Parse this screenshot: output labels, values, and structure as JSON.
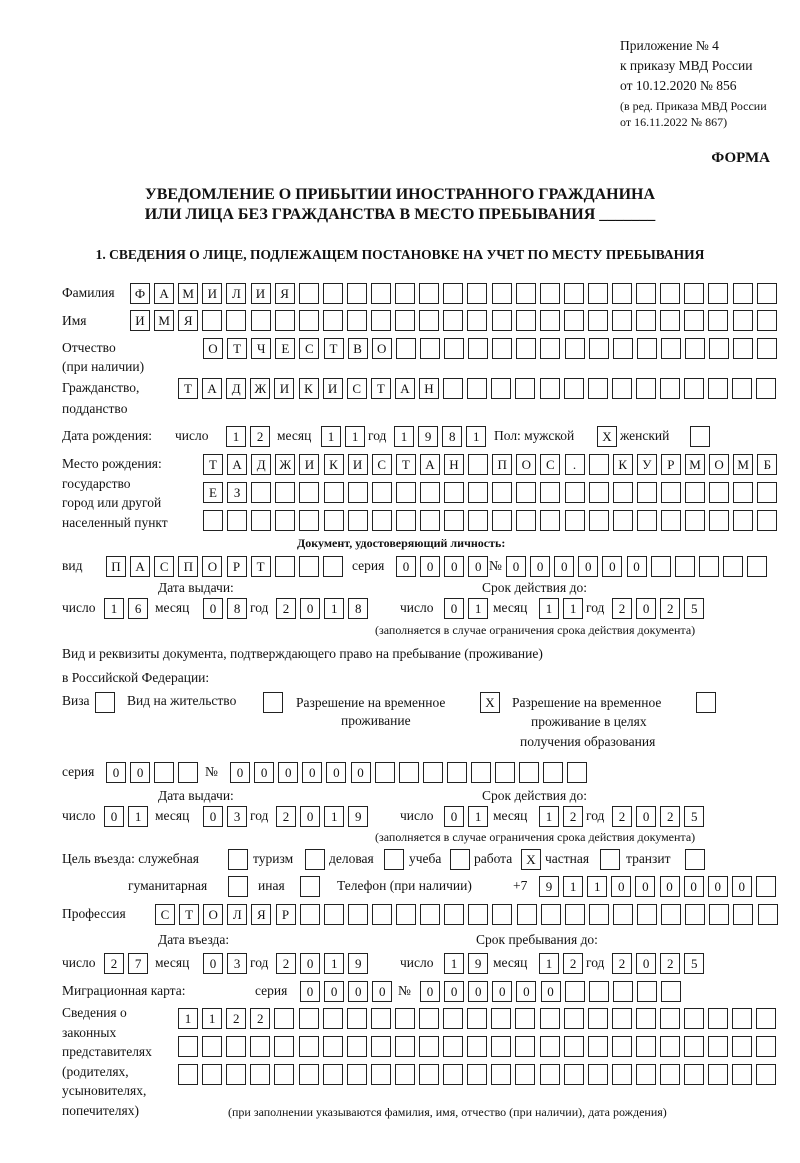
{
  "header": {
    "appendix": "Приложение № 4",
    "order": "к приказу МВД России",
    "order_date": "от 10.12.2020 № 856",
    "edition_1": "(в ред. Приказа МВД России",
    "edition_2": "от 16.11.2022 № 867)",
    "form": "ФОРМА",
    "title_1": "УВЕДОМЛЕНИЕ О ПРИБЫТИИ ИНОСТРАННОГО ГРАЖДАНИНА",
    "title_2": "ИЛИ ЛИЦА БЕЗ ГРАЖДАНСТВА В МЕСТО ПРЕБЫВАНИЯ _______",
    "section_1": "1. СВЕДЕНИЯ О ЛИЦЕ, ПОДЛЕЖАЩЕМ ПОСТАНОВКЕ НА УЧЕТ ПО МЕСТУ ПРЕБЫВАНИЯ"
  },
  "labels": {
    "surname": "Фамилия",
    "name": "Имя",
    "patronymic_1": "Отчество",
    "patronymic_2": "(при наличии)",
    "citizenship_1": "Гражданство,",
    "citizenship_2": "подданство",
    "birth_date": "Дата рождения:",
    "day": "число",
    "month": "месяц",
    "year": "год",
    "sex": "Пол: мужской",
    "female": "женский",
    "birthplace_1": "Место рождения:",
    "birthplace_2": "государство",
    "birthplace_3": "город или другой",
    "birthplace_4": "населенный пункт",
    "id_doc": "Документ, удостоверяющий личность:",
    "kind": "вид",
    "series": "серия",
    "number": "№",
    "issue_date": "Дата выдачи:",
    "valid_until": "Срок действия до:",
    "validity_note": "(заполняется в случае ограничения срока действия документа)",
    "stay_doc_1": "Вид и реквизиты документа, подтверждающего право на пребывание (проживание)",
    "stay_doc_2": "в Российской Федерации:",
    "visa": "Виза",
    "residence": "Вид на жительство",
    "temp_1": "Разрешение на временное",
    "temp_2": "проживание",
    "edu_1": "Разрешение на временное",
    "edu_2": "проживание в целях",
    "edu_3": "получения образования",
    "purpose": "Цель въезда: служебная",
    "tourism": "туризм",
    "business": "деловая",
    "study": "учеба",
    "work": "работа",
    "private": "частная",
    "transit": "транзит",
    "humanitarian": "гуманитарная",
    "other": "иная",
    "phone": "Телефон (при наличии)",
    "phone_prefix": "+7",
    "profession": "Профессия",
    "entry_date": "Дата въезда:",
    "stay_until": "Срок пребывания до:",
    "migration_card": "Миграционная карта:",
    "reps_1": "Сведения о",
    "reps_2": "законных",
    "reps_3": "представителях",
    "reps_4": "(родителях,",
    "reps_5": "усыновителях,",
    "reps_6": "попечителях)",
    "reps_note": "(при заполнении указываются фамилия, имя, отчество (при наличии), дата рождения)"
  },
  "person": {
    "surname": "ФАМИЛИЯ",
    "name": "ИМЯ",
    "patronymic": "ОТЧЕСТВО",
    "citizenship": "ТАДЖИКИСТАН",
    "birth_date": {
      "day": "12",
      "month": "11",
      "year": "1981"
    },
    "sex_male": "X",
    "sex_female": "",
    "birthplace_1": "ТАДЖИКИСТАН ПОС. КУРМОМБ",
    "birthplace_2": "ЕЗ",
    "birthplace_3": ""
  },
  "id_document": {
    "kind": "ПАСПОРТ",
    "series": "0000",
    "number": "000000",
    "issue_date": {
      "day": "16",
      "month": "08",
      "year": "2018"
    },
    "valid_until": {
      "day": "01",
      "month": "11",
      "year": "2025"
    }
  },
  "stay_document": {
    "visa": "",
    "residence": "",
    "temp_residence": "X",
    "temp_residence_edu": "",
    "series": "00",
    "number": "000000",
    "issue_date": {
      "day": "01",
      "month": "03",
      "year": "2019"
    },
    "valid_until": {
      "day": "01",
      "month": "12",
      "year": "2025"
    }
  },
  "purpose": {
    "official": "",
    "tourism": "",
    "business": "",
    "study": "",
    "work": "X",
    "private": "",
    "transit": "",
    "humanitarian": "",
    "other": ""
  },
  "phone": "911000000",
  "profession": "СТОЛЯР",
  "entry_date": {
    "day": "27",
    "month": "03",
    "year": "2019"
  },
  "stay_until": {
    "day": "19",
    "month": "12",
    "year": "2025"
  },
  "migration_card": {
    "series": "0000",
    "number": "000000"
  },
  "representatives": {
    "line_1": "1122",
    "line_2": "",
    "line_3": ""
  }
}
